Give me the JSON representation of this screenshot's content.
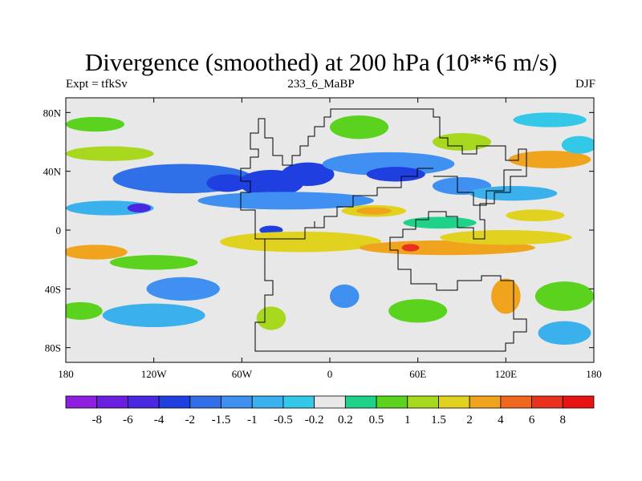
{
  "header": {
    "title": "Divergence (smoothed) at 200 hPa (10**6 m/s)",
    "left": "Expt = tfkSv",
    "center": "233_6_MaBP",
    "right": "DJF"
  },
  "chart_data": {
    "type": "heatmap",
    "title": "Divergence (smoothed) at 200 hPa (10**6 m/s)",
    "xlabel": "",
    "ylabel": "",
    "xlim": [
      -180,
      180
    ],
    "ylim": [
      -90,
      90
    ],
    "x_ticks": [
      {
        "value": -180,
        "label": "180"
      },
      {
        "value": -120,
        "label": "120W"
      },
      {
        "value": -60,
        "label": "60W"
      },
      {
        "value": 0,
        "label": "0"
      },
      {
        "value": 60,
        "label": "60E"
      },
      {
        "value": 120,
        "label": "120E"
      },
      {
        "value": 180,
        "label": "180"
      }
    ],
    "y_ticks": [
      {
        "value": 80,
        "label": "80N"
      },
      {
        "value": 40,
        "label": "40N"
      },
      {
        "value": 0,
        "label": "0"
      },
      {
        "value": -40,
        "label": "40S"
      },
      {
        "value": -80,
        "label": "80S"
      }
    ],
    "colorbar": {
      "levels": [
        "-8",
        "-6",
        "-4",
        "-2",
        "-1.5",
        "-1",
        "-0.5",
        "-0.2",
        "0.2",
        "0.5",
        "1",
        "1.5",
        "2",
        "4",
        "6",
        "8"
      ],
      "colors": [
        "#8f1fe0",
        "#6a1fe0",
        "#4a27e0",
        "#1f3fe0",
        "#2f6fe8",
        "#3f90f0",
        "#3ab0ec",
        "#34c8e8",
        "#e8e8e8",
        "#1ed28a",
        "#5ad21e",
        "#a8d81e",
        "#e0d21e",
        "#f0a41e",
        "#f0661e",
        "#e8321e",
        "#e81414"
      ]
    },
    "background_color": "#e8e8e8",
    "regions": [
      {
        "lon": -100,
        "lat": 35,
        "rlon": 48,
        "rlat": 10,
        "level": 4
      },
      {
        "lon": -40,
        "lat": 32,
        "rlon": 22,
        "rlat": 9,
        "level": 3
      },
      {
        "lon": -70,
        "lat": 32,
        "rlon": 14,
        "rlat": 6,
        "level": 3
      },
      {
        "lon": -30,
        "lat": 20,
        "rlon": 60,
        "rlat": 6,
        "level": 5
      },
      {
        "lon": -150,
        "lat": 15,
        "rlon": 30,
        "rlat": 5,
        "level": 6
      },
      {
        "lon": -130,
        "lat": 15,
        "rlon": 8,
        "rlat": 3,
        "level": 2
      },
      {
        "lon": -15,
        "lat": 38,
        "rlon": 18,
        "rlat": 8,
        "level": 3
      },
      {
        "lon": 40,
        "lat": 45,
        "rlon": 45,
        "rlat": 8,
        "level": 5
      },
      {
        "lon": 45,
        "lat": 38,
        "rlon": 20,
        "rlat": 5,
        "level": 3
      },
      {
        "lon": 90,
        "lat": 30,
        "rlon": 20,
        "rlat": 6,
        "level": 5
      },
      {
        "lon": 125,
        "lat": 25,
        "rlon": 30,
        "rlat": 5,
        "level": 6
      },
      {
        "lon": -40,
        "lat": 0,
        "rlon": 8,
        "rlat": 3,
        "level": 3
      },
      {
        "lon": 30,
        "lat": 13,
        "rlon": 22,
        "rlat": 4,
        "level": 12
      },
      {
        "lon": 30,
        "lat": 13,
        "rlon": 12,
        "rlat": 2.5,
        "level": 13
      },
      {
        "lon": 140,
        "lat": 10,
        "rlon": 20,
        "rlat": 4,
        "level": 12
      },
      {
        "lon": 75,
        "lat": 5,
        "rlon": 25,
        "rlat": 4,
        "level": 9
      },
      {
        "lon": -150,
        "lat": 52,
        "rlon": 30,
        "rlat": 5,
        "level": 11
      },
      {
        "lon": 150,
        "lat": 48,
        "rlon": 28,
        "rlat": 6,
        "level": 13
      },
      {
        "lon": 170,
        "lat": 58,
        "rlon": 12,
        "rlat": 6,
        "level": 7
      },
      {
        "lon": -160,
        "lat": 72,
        "rlon": 20,
        "rlat": 5,
        "level": 10
      },
      {
        "lon": 20,
        "lat": 70,
        "rlon": 20,
        "rlat": 8,
        "level": 10
      },
      {
        "lon": 90,
        "lat": 60,
        "rlon": 20,
        "rlat": 6,
        "level": 11
      },
      {
        "lon": -20,
        "lat": -8,
        "rlon": 55,
        "rlat": 7,
        "level": 12
      },
      {
        "lon": 80,
        "lat": -12,
        "rlon": 60,
        "rlat": 5,
        "level": 13
      },
      {
        "lon": 55,
        "lat": -12,
        "rlon": 6,
        "rlat": 2.5,
        "level": 15
      },
      {
        "lon": 120,
        "lat": -5,
        "rlon": 45,
        "rlat": 5,
        "level": 12
      },
      {
        "lon": -160,
        "lat": -15,
        "rlon": 22,
        "rlat": 5,
        "level": 13
      },
      {
        "lon": -120,
        "lat": -22,
        "rlon": 30,
        "rlat": 5,
        "level": 10
      },
      {
        "lon": -100,
        "lat": -40,
        "rlon": 25,
        "rlat": 8,
        "level": 5
      },
      {
        "lon": -120,
        "lat": -58,
        "rlon": 35,
        "rlat": 8,
        "level": 6
      },
      {
        "lon": -170,
        "lat": -55,
        "rlon": 15,
        "rlat": 6,
        "level": 10
      },
      {
        "lon": -40,
        "lat": -60,
        "rlon": 10,
        "rlat": 8,
        "level": 11
      },
      {
        "lon": 10,
        "lat": -45,
        "rlon": 10,
        "rlat": 8,
        "level": 5
      },
      {
        "lon": 60,
        "lat": -55,
        "rlon": 20,
        "rlat": 8,
        "level": 10
      },
      {
        "lon": 120,
        "lat": -45,
        "rlon": 10,
        "rlat": 12,
        "level": 13
      },
      {
        "lon": 160,
        "lat": -45,
        "rlon": 20,
        "rlat": 10,
        "level": 10
      },
      {
        "lon": 160,
        "lat": -70,
        "rlon": 18,
        "rlat": 8,
        "level": 6
      },
      {
        "lon": 150,
        "lat": 75,
        "rlon": 25,
        "rlat": 5,
        "level": 7
      }
    ]
  }
}
